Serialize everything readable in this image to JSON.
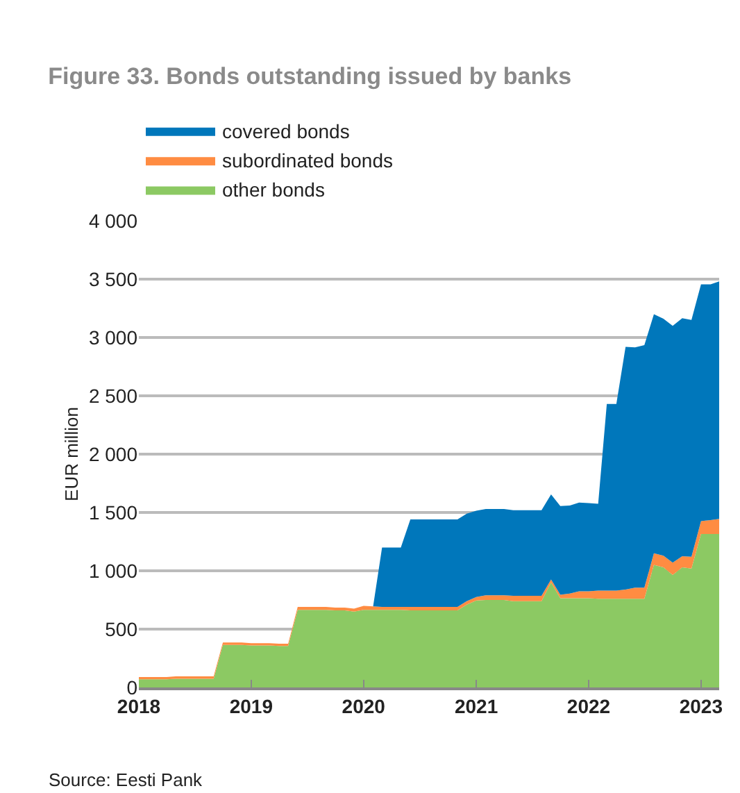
{
  "chart_data": {
    "type": "area",
    "title": "Figure 33. Bonds outstanding issued by banks",
    "ylabel": "EUR million",
    "stacked": true,
    "x": [
      "2018-01",
      "2018-02",
      "2018-03",
      "2018-04",
      "2018-05",
      "2018-06",
      "2018-07",
      "2018-08",
      "2018-09",
      "2018-10",
      "2018-11",
      "2018-12",
      "2019-01",
      "2019-02",
      "2019-03",
      "2019-04",
      "2019-05",
      "2019-06",
      "2019-07",
      "2019-08",
      "2019-09",
      "2019-10",
      "2019-11",
      "2019-12",
      "2020-01",
      "2020-02",
      "2020-03",
      "2020-04",
      "2020-05",
      "2020-06",
      "2020-07",
      "2020-08",
      "2020-09",
      "2020-10",
      "2020-11",
      "2020-12",
      "2021-01",
      "2021-02",
      "2021-03",
      "2021-04",
      "2021-05",
      "2021-06",
      "2021-07",
      "2021-08",
      "2021-09",
      "2021-10",
      "2021-11",
      "2021-12",
      "2022-01",
      "2022-02",
      "2022-03",
      "2022-04",
      "2022-05",
      "2022-06",
      "2022-07",
      "2022-08",
      "2022-09",
      "2022-10",
      "2022-11",
      "2022-12",
      "2023-01",
      "2023-02",
      "2023-03"
    ],
    "series": [
      {
        "name": "other bonds",
        "color": "#8cc963",
        "values": [
          70,
          70,
          70,
          70,
          75,
          75,
          75,
          75,
          75,
          365,
          365,
          365,
          360,
          360,
          360,
          355,
          355,
          665,
          665,
          665,
          665,
          660,
          660,
          650,
          665,
          665,
          665,
          665,
          665,
          660,
          660,
          660,
          660,
          660,
          660,
          710,
          745,
          750,
          750,
          750,
          740,
          740,
          740,
          740,
          900,
          765,
          765,
          765,
          765,
          760,
          760,
          760,
          760,
          760,
          760,
          1050,
          1030,
          965,
          1030,
          1020,
          1315,
          1315,
          1315
        ]
      },
      {
        "name": "subordinated bonds",
        "color": "#ff8c42",
        "values": [
          20,
          20,
          20,
          20,
          20,
          20,
          20,
          20,
          20,
          20,
          20,
          20,
          20,
          20,
          20,
          20,
          20,
          25,
          25,
          25,
          25,
          25,
          25,
          25,
          35,
          30,
          25,
          25,
          25,
          30,
          30,
          30,
          30,
          30,
          30,
          30,
          30,
          40,
          40,
          40,
          45,
          45,
          45,
          45,
          25,
          30,
          40,
          60,
          60,
          70,
          70,
          70,
          80,
          95,
          95,
          100,
          100,
          105,
          95,
          100,
          110,
          120,
          130
        ]
      },
      {
        "name": "covered bonds",
        "color": "#0077bb",
        "values": [
          0,
          0,
          0,
          0,
          0,
          0,
          0,
          0,
          0,
          0,
          0,
          0,
          0,
          0,
          0,
          0,
          0,
          0,
          0,
          0,
          0,
          0,
          0,
          0,
          0,
          0,
          510,
          510,
          510,
          750,
          750,
          750,
          750,
          750,
          750,
          750,
          740,
          740,
          740,
          740,
          735,
          735,
          735,
          735,
          730,
          760,
          755,
          760,
          755,
          745,
          1600,
          1600,
          2080,
          2060,
          2080,
          2050,
          2030,
          2030,
          2040,
          2030,
          2030,
          2020,
          2035
        ]
      }
    ],
    "xlim": [
      "2018-01",
      "2023-03"
    ],
    "xticks": [
      {
        "value": "2018-01",
        "label": "2018"
      },
      {
        "value": "2019-01",
        "label": "2019"
      },
      {
        "value": "2020-01",
        "label": "2020"
      },
      {
        "value": "2021-01",
        "label": "2021"
      },
      {
        "value": "2022-01",
        "label": "2022"
      },
      {
        "value": "2023-01",
        "label": "2023"
      }
    ],
    "ylim": [
      0,
      4000
    ],
    "yticks": [
      0,
      500,
      {
        "value": 1000,
        "label": "1 000"
      },
      {
        "value": 1500,
        "label": "1 500"
      },
      {
        "value": 2000,
        "label": "2 000"
      },
      {
        "value": 2500,
        "label": "2 500"
      },
      {
        "value": 3000,
        "label": "3 000"
      },
      {
        "value": 3500,
        "label": "3 500"
      },
      {
        "value": 4000,
        "label": "4 000"
      }
    ],
    "grid": "y",
    "legend": "top left",
    "annotations": [
      "Source: Eesti Pank"
    ]
  }
}
